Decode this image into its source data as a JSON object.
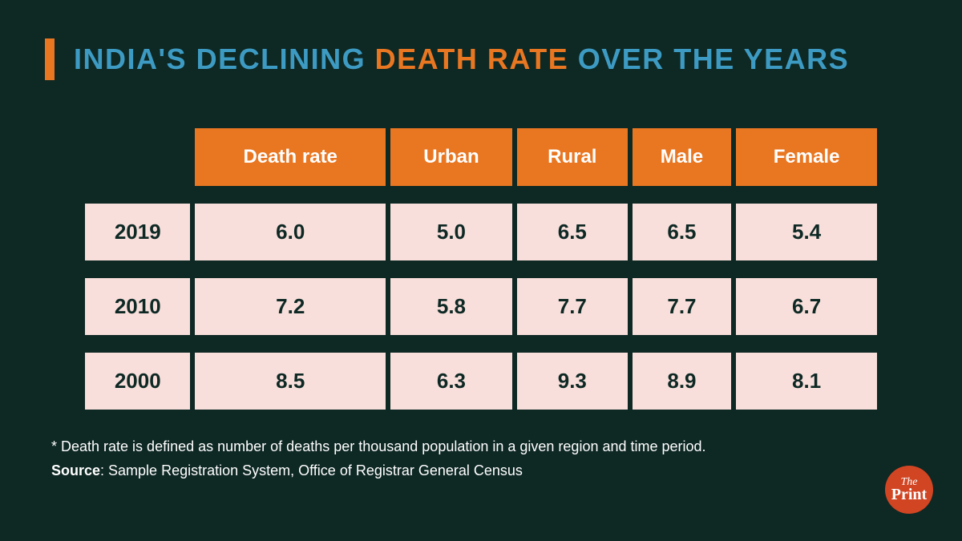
{
  "colors": {
    "background": "#0e2824",
    "accent_orange": "#e97722",
    "title_blue": "#3d9bc3",
    "cell_bg": "#f8dfdb",
    "cell_text": "#0e2824",
    "header_text": "#ffffff",
    "footnote_text": "#ffffff",
    "logo_bg": "#d14523"
  },
  "title": {
    "part1": "INDIA'S DECLINING ",
    "highlight": "DEATH RATE",
    "part2": " OVER THE YEARS",
    "fontsize": 36,
    "letter_spacing": 1.5
  },
  "table": {
    "type": "table",
    "columns": [
      "",
      "Death rate",
      "Urban",
      "Rural",
      "Male",
      "Female"
    ],
    "rows": [
      [
        "2019",
        "6.0",
        "5.0",
        "6.5",
        "6.5",
        "5.4"
      ],
      [
        "2010",
        "7.2",
        "5.8",
        "7.7",
        "7.7",
        "6.7"
      ],
      [
        "2000",
        "8.5",
        "6.3",
        "9.3",
        "8.9",
        "8.1"
      ]
    ],
    "header_bg": "#e97722",
    "header_fontsize": 24,
    "cell_bg": "#f8dfdb",
    "cell_fontsize": 26,
    "row_gap": 22,
    "col_gap": 6
  },
  "footnote": {
    "note": "* Death rate is defined as number of deaths per thousand population in a given region and time period.",
    "source_label": "Source",
    "source_text": ": Sample Registration System, Office of Registrar General Census",
    "fontsize": 18
  },
  "logo": {
    "line1": "The",
    "line2": "Print"
  }
}
